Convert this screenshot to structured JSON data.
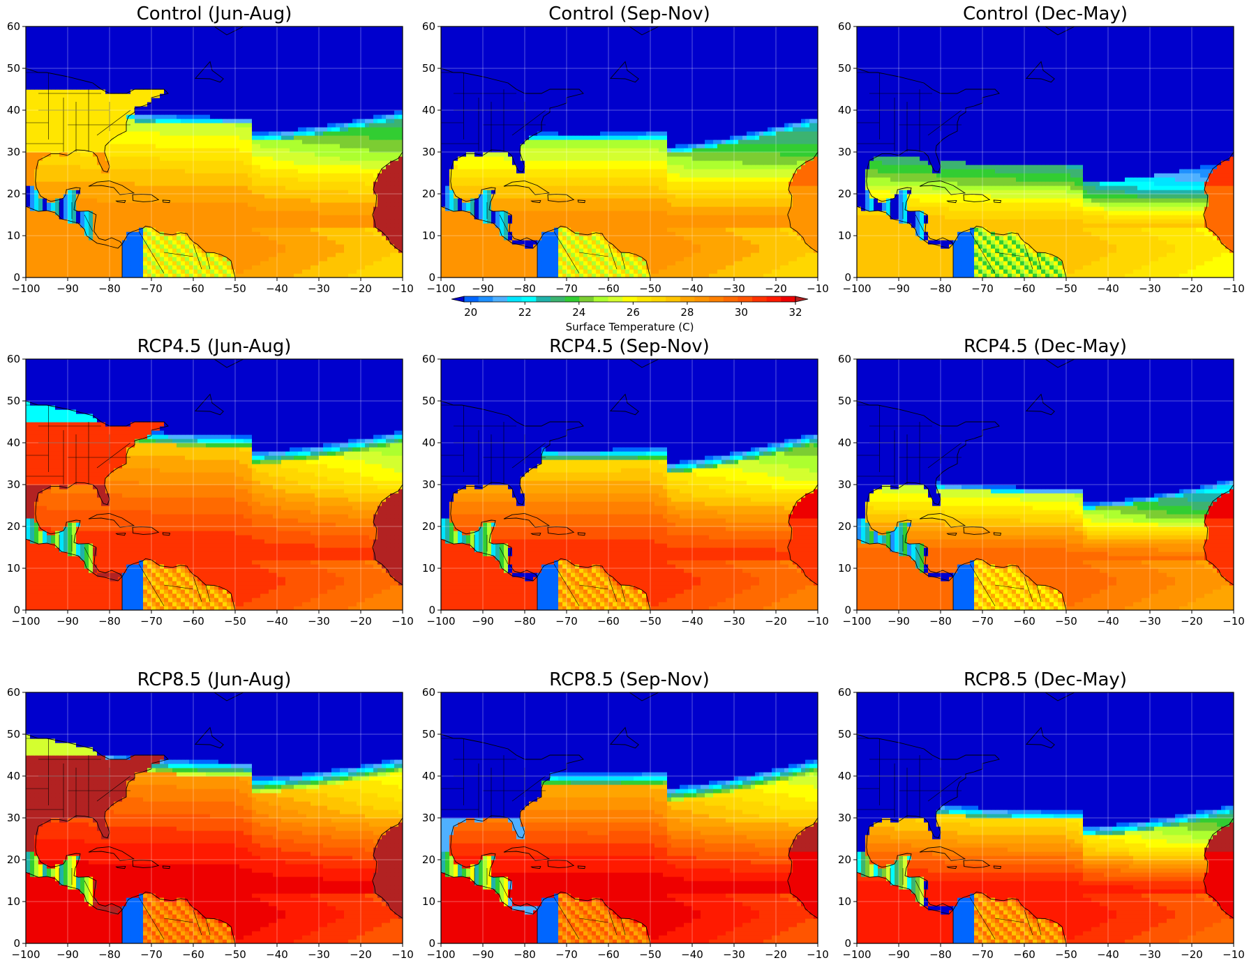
{
  "figure": {
    "colorbar": {
      "label": "Surface Temperature (C)",
      "tick_labels": [
        "20",
        "22",
        "24",
        "26",
        "28",
        "30",
        "32"
      ],
      "levels": [
        19.5,
        20,
        20.5,
        21,
        21.5,
        22,
        22.5,
        23,
        23.5,
        24,
        24.5,
        25,
        25.5,
        26,
        26.5,
        27,
        27.5,
        28,
        28.5,
        29,
        29.5,
        30,
        30.5,
        31,
        31.5,
        32
      ],
      "colors": [
        "#0000cd",
        "#0066ff",
        "#1e90ff",
        "#4fb0ff",
        "#00e5ff",
        "#00ffff",
        "#20b2aa",
        "#3cb371",
        "#32cd32",
        "#7ccd32",
        "#adff2f",
        "#d4ff2f",
        "#ffff00",
        "#ffe600",
        "#ffd700",
        "#ffc400",
        "#ffa500",
        "#ff9400",
        "#ff8000",
        "#ff6a00",
        "#ff5500",
        "#ff3300",
        "#ff1a00",
        "#ee0000",
        "#b22222"
      ],
      "extend": "both"
    },
    "land_overlay_colors": {
      "cold": "#0000cd",
      "hot": "#b22222"
    }
  },
  "chart_data": [
    {
      "type": "heatmap",
      "title": "Control (Jun-Aug)",
      "scenario": "Control",
      "season": "Jun-Aug",
      "xlim": [
        -100,
        -10
      ],
      "ylim": [
        0,
        60
      ],
      "x_ticks": [
        "−100",
        "−90",
        "−80",
        "−70",
        "−60",
        "−50",
        "−40",
        "−30",
        "−20",
        "−10"
      ],
      "y_ticks": [
        "0",
        "10",
        "20",
        "30",
        "40",
        "50",
        "60"
      ],
      "grid": true,
      "field": {
        "tropical_max_C": 28.5,
        "subtropical_C": 27.5,
        "mid_atlantic_C": 26.0,
        "cold_front_lat_west": 40,
        "cold_front_lat_east": 38,
        "west_africa_C": 33,
        "us_land_C": 26
      }
    },
    {
      "type": "heatmap",
      "title": "Control (Sep-Nov)",
      "scenario": "Control",
      "season": "Sep-Nov",
      "xlim": [
        -100,
        -10
      ],
      "ylim": [
        0,
        60
      ],
      "x_ticks": [
        "−100",
        "−90",
        "−80",
        "−70",
        "−60",
        "−50",
        "−40",
        "−30",
        "−20",
        "−10"
      ],
      "y_ticks": [
        "0",
        "10",
        "20",
        "30",
        "40",
        "50",
        "60"
      ],
      "grid": true,
      "field": {
        "tropical_max_C": 28.5,
        "subtropical_C": 27.0,
        "mid_atlantic_C": 25.5,
        "cold_front_lat_west": 34,
        "cold_front_lat_east": 37,
        "west_africa_C": 29,
        "us_land_C": 15
      }
    },
    {
      "type": "heatmap",
      "title": "Control (Dec-May)",
      "scenario": "Control",
      "season": "Dec-May",
      "xlim": [
        -100,
        -10
      ],
      "ylim": [
        0,
        60
      ],
      "x_ticks": [
        "−100",
        "−90",
        "−80",
        "−70",
        "−60",
        "−50",
        "−40",
        "−30",
        "−20",
        "−10"
      ],
      "y_ticks": [
        "0",
        "10",
        "20",
        "30",
        "40",
        "50",
        "60"
      ],
      "grid": true,
      "field": {
        "tropical_max_C": 27.5,
        "subtropical_C": 25.5,
        "mid_atlantic_C": 23.0,
        "cold_front_lat_west": 30,
        "cold_front_lat_east": 28,
        "west_africa_C": 30,
        "us_land_C": 12
      }
    },
    {
      "type": "heatmap",
      "title": "RCP4.5 (Jun-Aug)",
      "scenario": "RCP4.5",
      "season": "Jun-Aug",
      "xlim": [
        -100,
        -10
      ],
      "ylim": [
        0,
        60
      ],
      "x_ticks": [
        "−100",
        "−90",
        "−80",
        "−70",
        "−60",
        "−50",
        "−40",
        "−30",
        "−20",
        "−10"
      ],
      "y_ticks": [
        "0",
        "10",
        "20",
        "30",
        "40",
        "50",
        "60"
      ],
      "grid": true,
      "field": {
        "tropical_max_C": 30.5,
        "subtropical_C": 29.5,
        "mid_atlantic_C": 27.5,
        "cold_front_lat_west": 43,
        "cold_front_lat_east": 40,
        "west_africa_C": 33,
        "us_land_C": 30
      }
    },
    {
      "type": "heatmap",
      "title": "RCP4.5 (Sep-Nov)",
      "scenario": "RCP4.5",
      "season": "Sep-Nov",
      "xlim": [
        -100,
        -10
      ],
      "ylim": [
        0,
        60
      ],
      "x_ticks": [
        "−100",
        "−90",
        "−80",
        "−70",
        "−60",
        "−50",
        "−40",
        "−30",
        "−20",
        "−10"
      ],
      "y_ticks": [
        "0",
        "10",
        "20",
        "30",
        "40",
        "50",
        "60"
      ],
      "grid": true,
      "field": {
        "tropical_max_C": 30.5,
        "subtropical_C": 29.0,
        "mid_atlantic_C": 27.0,
        "cold_front_lat_west": 37,
        "cold_front_lat_east": 40,
        "west_africa_C": 31,
        "us_land_C": 17
      }
    },
    {
      "type": "heatmap",
      "title": "RCP4.5 (Dec-May)",
      "scenario": "RCP4.5",
      "season": "Dec-May",
      "xlim": [
        -100,
        -10
      ],
      "ylim": [
        0,
        60
      ],
      "x_ticks": [
        "−100",
        "−90",
        "−80",
        "−70",
        "−60",
        "−50",
        "−40",
        "−30",
        "−20",
        "−10"
      ],
      "y_ticks": [
        "0",
        "10",
        "20",
        "30",
        "40",
        "50",
        "60"
      ],
      "grid": true,
      "field": {
        "tropical_max_C": 29.5,
        "subtropical_C": 27.5,
        "mid_atlantic_C": 25.0,
        "cold_front_lat_west": 31,
        "cold_front_lat_east": 30,
        "west_africa_C": 31,
        "us_land_C": 14
      }
    },
    {
      "type": "heatmap",
      "title": "RCP8.5 (Jun-Aug)",
      "scenario": "RCP8.5",
      "season": "Jun-Aug",
      "xlim": [
        -100,
        -10
      ],
      "ylim": [
        0,
        60
      ],
      "x_ticks": [
        "−100",
        "−90",
        "−80",
        "−70",
        "−60",
        "−50",
        "−40",
        "−30",
        "−20",
        "−10"
      ],
      "y_ticks": [
        "0",
        "10",
        "20",
        "30",
        "40",
        "50",
        "60"
      ],
      "grid": true,
      "field": {
        "tropical_max_C": 31.5,
        "subtropical_C": 30.5,
        "mid_atlantic_C": 28.5,
        "cold_front_lat_west": 44,
        "cold_front_lat_east": 41,
        "west_africa_C": 33,
        "us_land_C": 33
      }
    },
    {
      "type": "heatmap",
      "title": "RCP8.5 (Sep-Nov)",
      "scenario": "RCP8.5",
      "season": "Sep-Nov",
      "xlim": [
        -100,
        -10
      ],
      "ylim": [
        0,
        60
      ],
      "x_ticks": [
        "−100",
        "−90",
        "−80",
        "−70",
        "−60",
        "−50",
        "−40",
        "−30",
        "−20",
        "−10"
      ],
      "y_ticks": [
        "0",
        "10",
        "20",
        "30",
        "40",
        "50",
        "60"
      ],
      "grid": true,
      "field": {
        "tropical_max_C": 31.5,
        "subtropical_C": 30.0,
        "mid_atlantic_C": 28.0,
        "cold_front_lat_west": 39,
        "cold_front_lat_east": 41,
        "west_africa_C": 32,
        "us_land_C": 19
      }
    },
    {
      "type": "heatmap",
      "title": "RCP8.5 (Dec-May)",
      "scenario": "RCP8.5",
      "season": "Dec-May",
      "xlim": [
        -100,
        -10
      ],
      "ylim": [
        0,
        60
      ],
      "x_ticks": [
        "−100",
        "−90",
        "−80",
        "−70",
        "−60",
        "−50",
        "−40",
        "−30",
        "−20",
        "−10"
      ],
      "y_ticks": [
        "0",
        "10",
        "20",
        "30",
        "40",
        "50",
        "60"
      ],
      "grid": true,
      "field": {
        "tropical_max_C": 31.0,
        "subtropical_C": 29.0,
        "mid_atlantic_C": 26.5,
        "cold_front_lat_west": 33,
        "cold_front_lat_east": 31,
        "west_africa_C": 32,
        "us_land_C": 16
      }
    }
  ]
}
